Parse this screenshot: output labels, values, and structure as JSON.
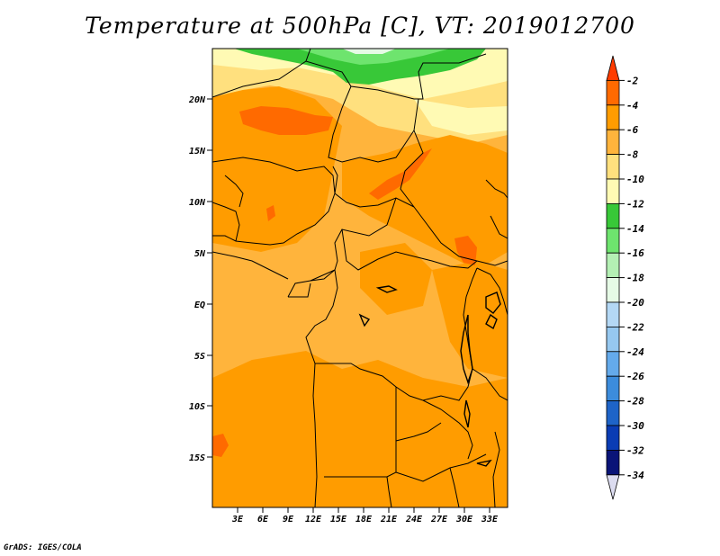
{
  "title": "Temperature at 500hPa [C], VT: 2019012700",
  "credit": "GrADS: IGES/COLA",
  "lat_labels": [
    "20N",
    "15N",
    "10N",
    "5N",
    "EQ",
    "5S",
    "10S",
    "15S"
  ],
  "lon_labels": [
    "3E",
    "6E",
    "9E",
    "12E",
    "15E",
    "18E",
    "21E",
    "24E",
    "27E",
    "30E",
    "33E"
  ],
  "colorbar": {
    "labels": [
      "-2",
      "-4",
      "-6",
      "-8",
      "-10",
      "-12",
      "-14",
      "-16",
      "-18",
      "-20",
      "-22",
      "-24",
      "-26",
      "-28",
      "-30",
      "-32",
      "-34"
    ],
    "colors": [
      "#ff3c00",
      "#ff6a00",
      "#ff9c00",
      "#ffb43c",
      "#ffe07e",
      "#fffab4",
      "#38c838",
      "#6ee46e",
      "#b4f0b4",
      "#e6fae6",
      "#b4d8f5",
      "#96c8f0",
      "#64aaeb",
      "#3c8cdc",
      "#1e64c8",
      "#0a3cb4",
      "#0a1478",
      "#dcdcf0"
    ]
  },
  "colors": {
    "frame": "#000000",
    "border": "#000000",
    "background": "#ffffff"
  }
}
